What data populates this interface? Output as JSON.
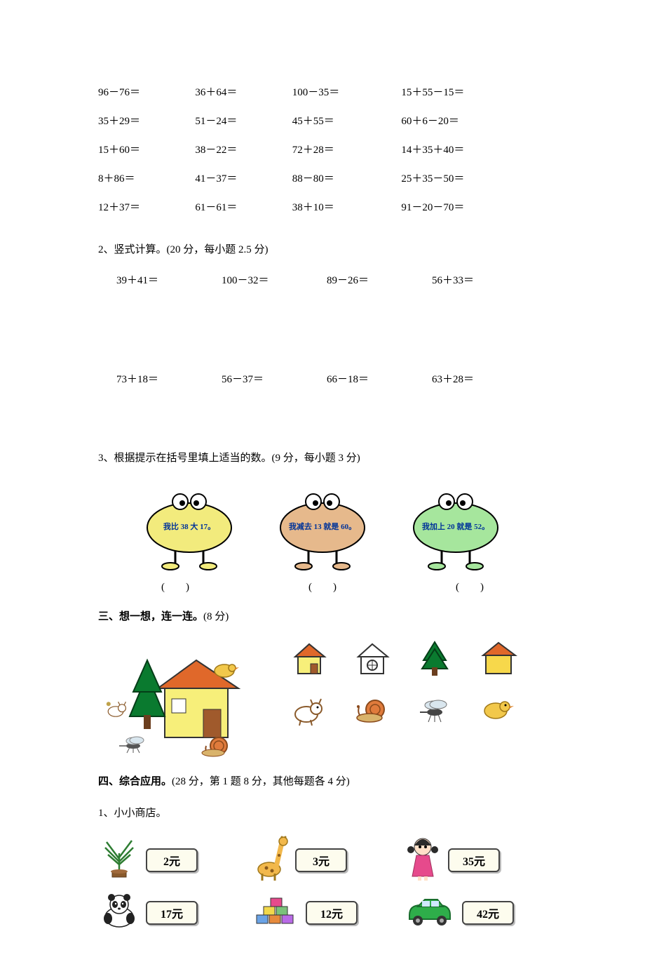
{
  "mental_math": {
    "rows": [
      [
        "96－76＝",
        "36＋64＝",
        "100－35＝",
        "15＋55－15＝"
      ],
      [
        "35＋29＝",
        "51－24＝",
        "45＋55＝",
        "60＋6－20＝"
      ],
      [
        "15＋60＝",
        "38－22＝",
        "72＋28＝",
        "14＋35＋40＝"
      ],
      [
        "8＋86＝",
        "41－37＝",
        "88－80＝",
        "25＋35－50＝"
      ],
      [
        "12＋37＝",
        "61－61＝",
        "38＋10＝",
        "91－20－70＝"
      ]
    ]
  },
  "q2": {
    "heading": "2、竖式计算。(20 分，每小题 2.5 分)",
    "row1": [
      "39＋41＝",
      "100－32＝",
      "89－26＝",
      "56＋33＝"
    ],
    "row2": [
      "73＋18＝",
      "56－37＝",
      "66－18＝",
      "63＋28＝"
    ]
  },
  "q3": {
    "heading": "3、根据提示在括号里填上适当的数。(9 分，每小题 3 分)",
    "blobs": [
      {
        "text": "我比 38 大 17。",
        "fill": "#f2eb7d",
        "stroke": "#000000"
      },
      {
        "text": "我减去 13 就是 60。",
        "fill": "#e6b98c",
        "stroke": "#000000"
      },
      {
        "text": "我加上 20 就是 52。",
        "fill": "#a6e69d",
        "stroke": "#000000"
      }
    ],
    "blank": "(　　)"
  },
  "sec3": {
    "heading_bold": "三、想一想，连一连。",
    "heading_rest": "(8 分)",
    "right_icons": [
      "house-orange-roof",
      "house-outline",
      "pine-tree",
      "house-yellow",
      "dog",
      "snail",
      "mosquito",
      "chick"
    ]
  },
  "sec4": {
    "heading_bold": "四、综合应用。",
    "heading_rest": "(28 分，第 1 题 8 分，其他每题各 4 分)",
    "q1_label": "1、小小商店。",
    "items_row1": [
      {
        "icon": "plant",
        "price": "2元"
      },
      {
        "icon": "giraffe",
        "price": "3元"
      },
      {
        "icon": "doll",
        "price": "35元"
      }
    ],
    "items_row2": [
      {
        "icon": "panda",
        "price": "17元"
      },
      {
        "icon": "blocks",
        "price": "12元"
      },
      {
        "icon": "car",
        "price": "42元"
      }
    ],
    "price_bg": "#fdfcee",
    "price_border": "#444444"
  }
}
